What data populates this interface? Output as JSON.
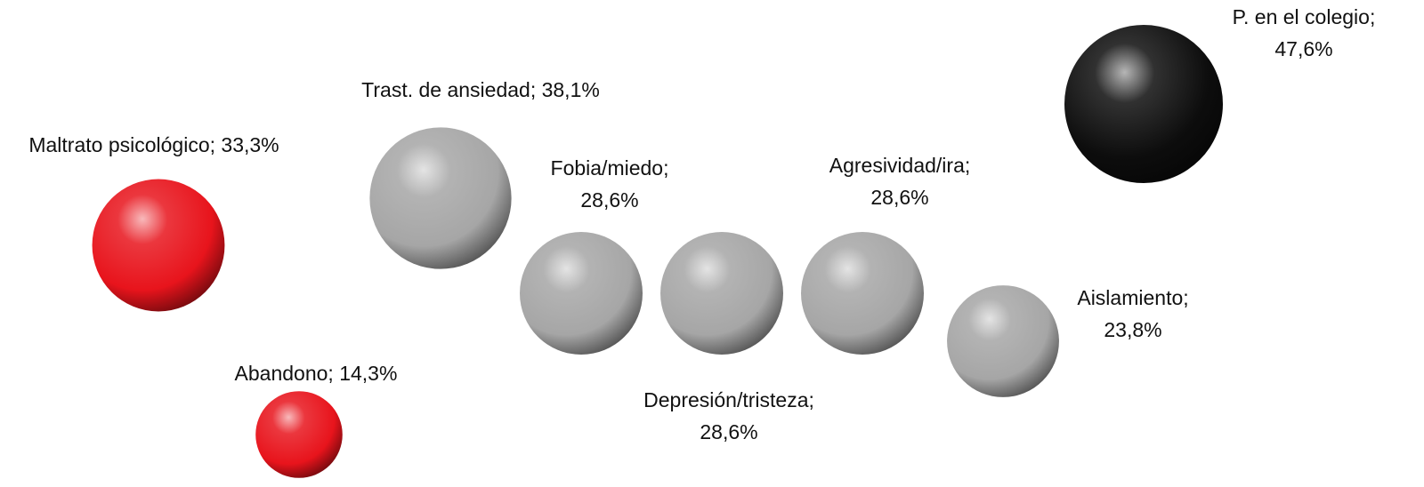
{
  "chart_data": {
    "type": "bubble",
    "values": [
      33.3,
      14.3,
      38.1,
      28.6,
      28.6,
      28.6,
      23.8,
      47.6
    ],
    "value_labels": [
      [
        "Maltrato psicológico; 33,3%"
      ],
      [
        "Abandono; 14,3%"
      ],
      [
        "Trast. de ansiedad; 38,1%"
      ],
      [
        "Fobia/miedo;",
        "28,6%"
      ],
      [
        "Depresión/tristeza;",
        "28,6%"
      ],
      [
        "Agresividad/ira;",
        "28,6%"
      ],
      [
        "Aislamiento;",
        "23,8%"
      ],
      [
        "P. en el colegio;",
        "47,6%"
      ]
    ],
    "colors": [
      "#e8141c",
      "#e8141c",
      "#a6a6a6",
      "#a6a6a6",
      "#a6a6a6",
      "#a6a6a6",
      "#a6a6a6",
      "#0d0d0d"
    ]
  }
}
